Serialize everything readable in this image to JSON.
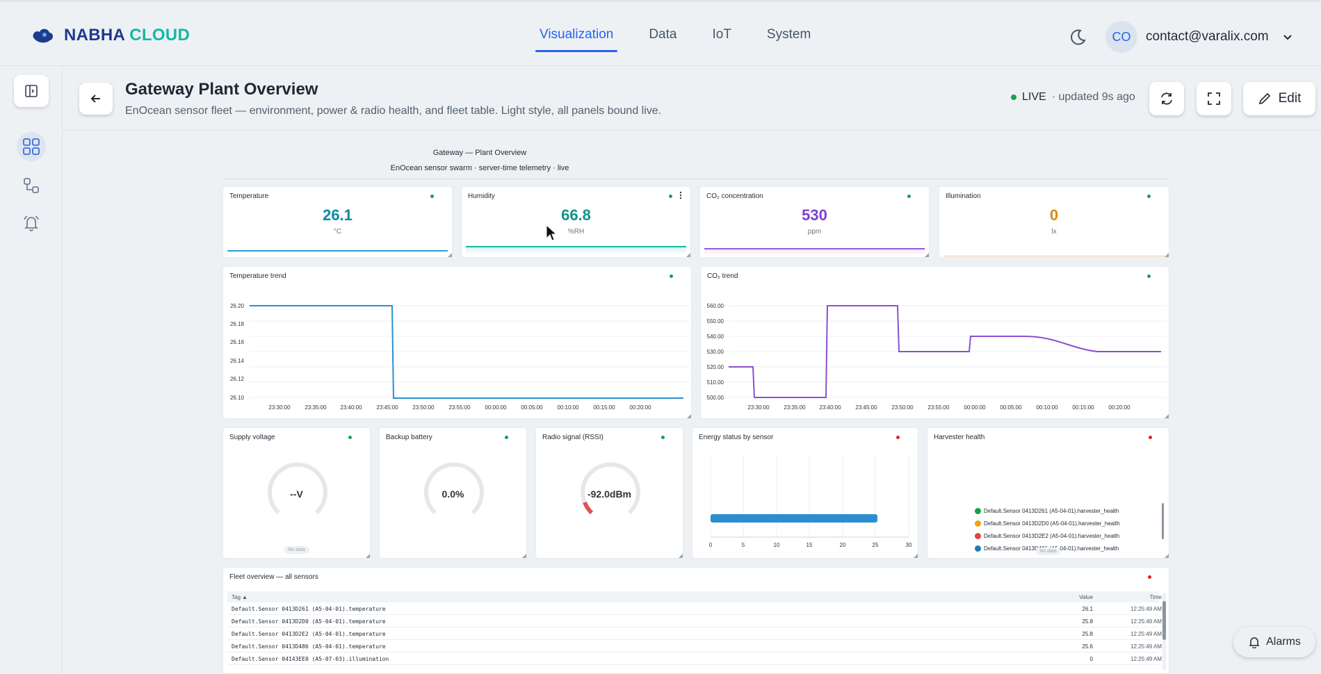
{
  "brand": {
    "part1": "NABHA",
    "part2": "CLOUD"
  },
  "nav": [
    {
      "label": "Visualization",
      "active": true
    },
    {
      "label": "Data",
      "active": false
    },
    {
      "label": "IoT",
      "active": false
    },
    {
      "label": "System",
      "active": false
    }
  ],
  "user": {
    "initials": "CO",
    "email": "contact@varalix.com"
  },
  "header": {
    "title": "Gateway Plant Overview",
    "subtitle": "EnOcean sensor fleet — environment, power & radio health, and fleet table. Light style, all panels bound live.",
    "live_label": "LIVE",
    "updated": "· updated 9s ago",
    "edit_label": "Edit"
  },
  "dashboard": {
    "title": "Gateway — Plant Overview",
    "subtitle": "EnOcean sensor swarm · server-time telemetry · live"
  },
  "stats": [
    {
      "title": "Temperature",
      "value": "26.1",
      "unit": "°C",
      "color": "#0e8aa0",
      "spark": "#2a9fd6",
      "dot": "g"
    },
    {
      "title": "Humidity",
      "value": "66.8",
      "unit": "%RH",
      "color": "#0f9488",
      "spark": "#14b8a6",
      "dot": "g"
    },
    {
      "title": "CO₂ concentration",
      "value": "530",
      "unit": "ppm",
      "color": "#7e3fd0",
      "spark": "#9b59d6",
      "dot": "g"
    },
    {
      "title": "Illumination",
      "value": "0",
      "unit": "lx",
      "color": "#d98a0b",
      "spark": "#e6a23c",
      "dot": "g"
    }
  ],
  "trends": {
    "temperature_title": "Temperature trend",
    "co2_title": "CO₂ trend",
    "x_ticks": [
      "23:30:00",
      "23:35:00",
      "23:40:00",
      "23:45:00",
      "23:50:00",
      "23:55:00",
      "00:00:00",
      "00:05:00",
      "00:10:00",
      "00:15:00",
      "00:20:00"
    ],
    "temp_y_ticks": [
      "26.20",
      "26.18",
      "26.16",
      "26.14",
      "26.12",
      "26.10"
    ],
    "co2_y_ticks": [
      "560.00",
      "550.00",
      "540.00",
      "530.00",
      "520.00",
      "510.00",
      "500.00"
    ]
  },
  "gauges": [
    {
      "title": "Supply voltage",
      "text": "--V",
      "nodata": "No data"
    },
    {
      "title": "Backup battery",
      "text": "0.0%"
    },
    {
      "title": "Radio signal (RSSI)",
      "text": "-92.0dBm"
    }
  ],
  "energy": {
    "title": "Energy status by sensor",
    "x_ticks": [
      "0",
      "5",
      "10",
      "15",
      "20",
      "25",
      "30"
    ]
  },
  "harvester": {
    "title": "Harvester health",
    "nodata": "No data",
    "legend": [
      {
        "label": "Default.Sensor 0413D261 (A5-04-01).harvester_health",
        "color": "#16a34a"
      },
      {
        "label": "Default.Sensor 0413D2D0 (A5-04-01).harvester_health",
        "color": "#f0a30a"
      },
      {
        "label": "Default.Sensor 0413D2E2 (A5-04-01).harvester_health",
        "color": "#e04545"
      },
      {
        "label": "Default.Sensor 0413D486 (A5-04-01).harvester_health",
        "color": "#1f7ab8"
      }
    ]
  },
  "table": {
    "title": "Fleet overview — all sensors",
    "headers": {
      "tag": "Tag ▲",
      "value": "Value",
      "time": "Time"
    },
    "rows": [
      {
        "tag": "Default.Sensor 0413D261 (A5-04-01).temperature",
        "value": "26.1",
        "time": "12:25:49 AM"
      },
      {
        "tag": "Default.Sensor 0413D2D0 (A5-04-01).temperature",
        "value": "25.8",
        "time": "12:25:49 AM"
      },
      {
        "tag": "Default.Sensor 0413D2E2 (A5-04-01).temperature",
        "value": "25.8",
        "time": "12:25:49 AM"
      },
      {
        "tag": "Default.Sensor 0413D486 (A5-04-01).temperature",
        "value": "25.6",
        "time": "12:25:49 AM"
      },
      {
        "tag": "Default.Sensor 04143EE0 (A5-07-03).illumination",
        "value": "0",
        "time": "12:25:49 AM"
      }
    ]
  },
  "alarms_label": "Alarms"
}
